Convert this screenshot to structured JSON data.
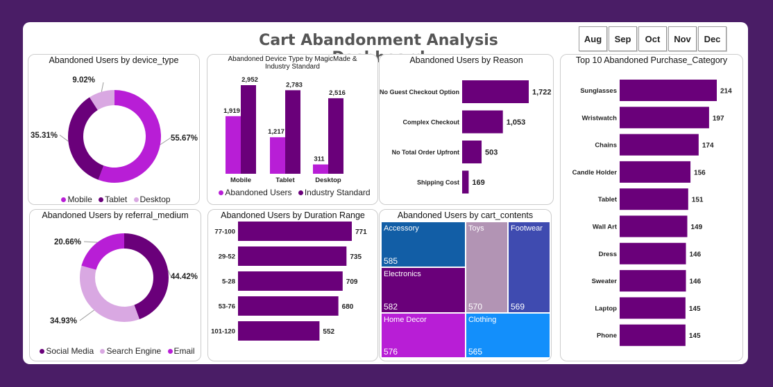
{
  "header": {
    "title": "Cart Abandonment Analysis Dashboard"
  },
  "months": [
    "Aug",
    "Sep",
    "Oct",
    "Nov",
    "Dec"
  ],
  "colors": {
    "dark": "#6a007a",
    "mid": "#b81ed6",
    "light": "#d9a8e2",
    "background": "#4a1d66"
  },
  "charts": {
    "device_type": {
      "title": "Abandoned Users by device_type",
      "legend": [
        {
          "label": "Mobile",
          "color": "#b81ed6"
        },
        {
          "label": "Tablet",
          "color": "#6a007a"
        },
        {
          "label": "Desktop",
          "color": "#d9a8e2"
        }
      ]
    },
    "magicmade": {
      "title": "Abandoned Device Type by MagicMade & Industry Standard",
      "legend": [
        {
          "label": "Abandoned Users",
          "color": "#b81ed6"
        },
        {
          "label": "Industry Standard",
          "color": "#6a007a"
        }
      ]
    },
    "reason": {
      "title": "Abandoned Users by Reason"
    },
    "category": {
      "title": "Top 10 Abandoned Purchase_Category"
    },
    "referral": {
      "title": "Abandoned Users by referral_medium",
      "legend": [
        {
          "label": "Social Media",
          "color": "#6a007a"
        },
        {
          "label": "Search Engine",
          "color": "#d9a8e2"
        },
        {
          "label": "Email",
          "color": "#b81ed6"
        }
      ]
    },
    "duration": {
      "title": "Abandoned Users by Duration Range"
    },
    "cart": {
      "title": "Abandoned Users by cart_contents"
    }
  },
  "chart_data": [
    {
      "id": "device_type",
      "type": "pie",
      "donut": true,
      "categories": [
        "Mobile",
        "Tablet",
        "Desktop"
      ],
      "values": [
        55.67,
        35.31,
        9.02
      ],
      "labels": [
        "55.67%",
        "35.31%",
        "9.02%"
      ],
      "colors": [
        "#b81ed6",
        "#6a007a",
        "#d9a8e2"
      ]
    },
    {
      "id": "magicmade",
      "type": "bar",
      "categories": [
        "Mobile",
        "Tablet",
        "Desktop"
      ],
      "series": [
        {
          "name": "Abandoned Users",
          "values": [
            1919,
            1217,
            311
          ],
          "labels": [
            "1,919",
            "1,217",
            "311"
          ],
          "color": "#b81ed6"
        },
        {
          "name": "Industry Standard",
          "values": [
            2952,
            2783,
            2516
          ],
          "labels": [
            "2,952",
            "2,783",
            "2,516"
          ],
          "color": "#6a007a"
        }
      ]
    },
    {
      "id": "reason",
      "type": "bar",
      "orientation": "horizontal",
      "categories": [
        "No Guest Checkout Option",
        "Complex Checkout",
        "No Total Order Upfront",
        "Shipping Cost"
      ],
      "values": [
        1722,
        1053,
        503,
        169
      ],
      "labels": [
        "1,722",
        "1,053",
        "503",
        "169"
      ]
    },
    {
      "id": "category",
      "type": "bar",
      "orientation": "horizontal",
      "categories": [
        "Sunglasses",
        "Wristwatch",
        "Chains",
        "Candle Holder",
        "Tablet",
        "Wall Art",
        "Dress",
        "Sweater",
        "Laptop",
        "Phone"
      ],
      "values": [
        214,
        197,
        174,
        156,
        151,
        149,
        146,
        146,
        145,
        145
      ],
      "labels": [
        "214",
        "197",
        "174",
        "156",
        "151",
        "149",
        "146",
        "146",
        "145",
        "145"
      ]
    },
    {
      "id": "referral",
      "type": "pie",
      "donut": true,
      "categories": [
        "Social Media",
        "Search Engine",
        "Email"
      ],
      "values": [
        44.42,
        34.93,
        20.66
      ],
      "labels": [
        "44.42%",
        "34.93%",
        "20.66%"
      ],
      "colors": [
        "#6a007a",
        "#d9a8e2",
        "#b81ed6"
      ]
    },
    {
      "id": "duration",
      "type": "bar",
      "orientation": "horizontal",
      "categories": [
        "77-100",
        "29-52",
        "5-28",
        "53-76",
        "101-120"
      ],
      "values": [
        771,
        735,
        709,
        680,
        552
      ],
      "labels": [
        "771",
        "735",
        "709",
        "680",
        "552"
      ]
    },
    {
      "id": "cart",
      "type": "treemap",
      "categories": [
        "Accessory",
        "Electronics",
        "Home Decor",
        "Toys",
        "Footwear",
        "Clothing"
      ],
      "values": [
        585,
        582,
        576,
        570,
        569,
        565
      ],
      "labels": [
        "585",
        "582",
        "576",
        "570",
        "569",
        "565"
      ],
      "colors": [
        "#125ea6",
        "#6a007a",
        "#b81ed6",
        "#b294b4",
        "#3f4bb0",
        "#138ffb"
      ]
    }
  ]
}
